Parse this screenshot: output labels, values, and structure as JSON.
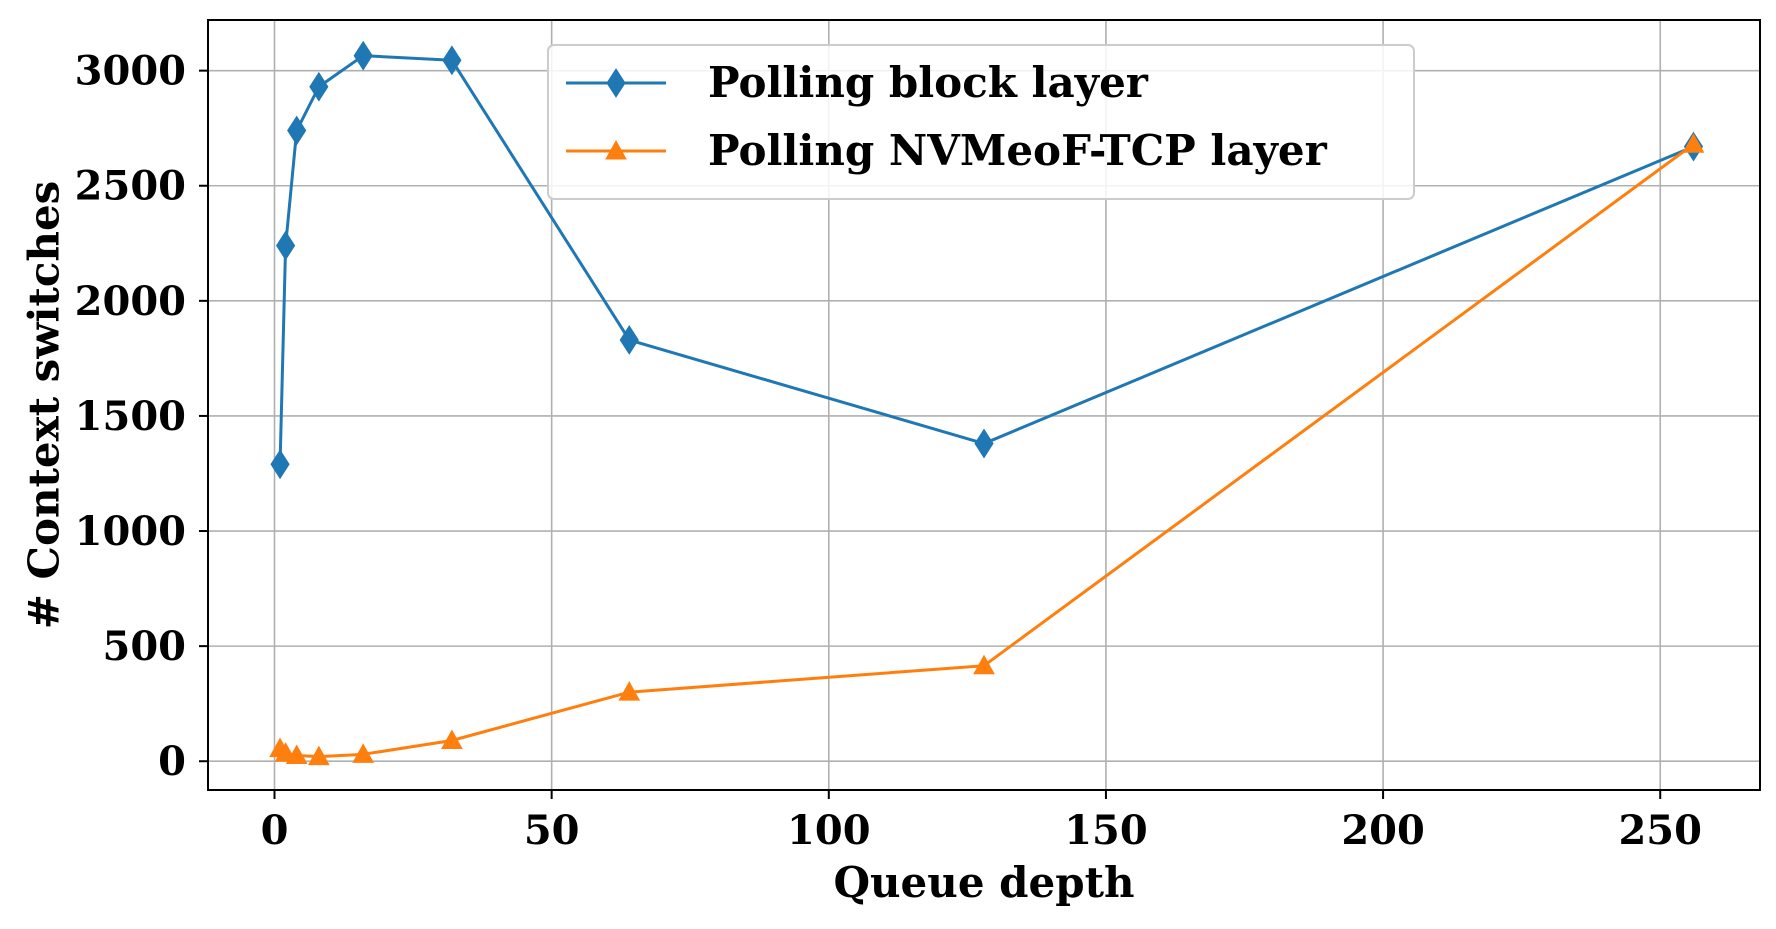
{
  "chart_data": {
    "type": "line",
    "xlabel": "Queue depth",
    "ylabel": "# Context switches",
    "xlim": [
      -12,
      268
    ],
    "ylim": [
      -125,
      3220
    ],
    "xticks": [
      0,
      50,
      100,
      150,
      200,
      250
    ],
    "yticks": [
      0,
      500,
      1000,
      1500,
      2000,
      2500,
      3000
    ],
    "xtick_labels": [
      "0",
      "50",
      "100",
      "150",
      "200",
      "250"
    ],
    "ytick_labels": [
      "0",
      "500",
      "1000",
      "1500",
      "2000",
      "2500",
      "3000"
    ],
    "grid": true,
    "legend_position": "upper center",
    "series": [
      {
        "name": "Polling block layer",
        "color": "#1f77b4",
        "marker": "thin-diamond",
        "x": [
          1,
          2,
          4,
          8,
          16,
          32,
          64,
          128,
          256
        ],
        "y": [
          1290,
          2240,
          2740,
          2930,
          3065,
          3045,
          1830,
          1380,
          2670
        ]
      },
      {
        "name": "Polling NVMeoF-TCP layer",
        "color": "#ff7f0e",
        "marker": "triangle-up",
        "x": [
          1,
          2,
          4,
          8,
          16,
          32,
          64,
          128,
          256
        ],
        "y": [
          55,
          35,
          25,
          20,
          30,
          90,
          300,
          415,
          2680
        ]
      }
    ]
  }
}
